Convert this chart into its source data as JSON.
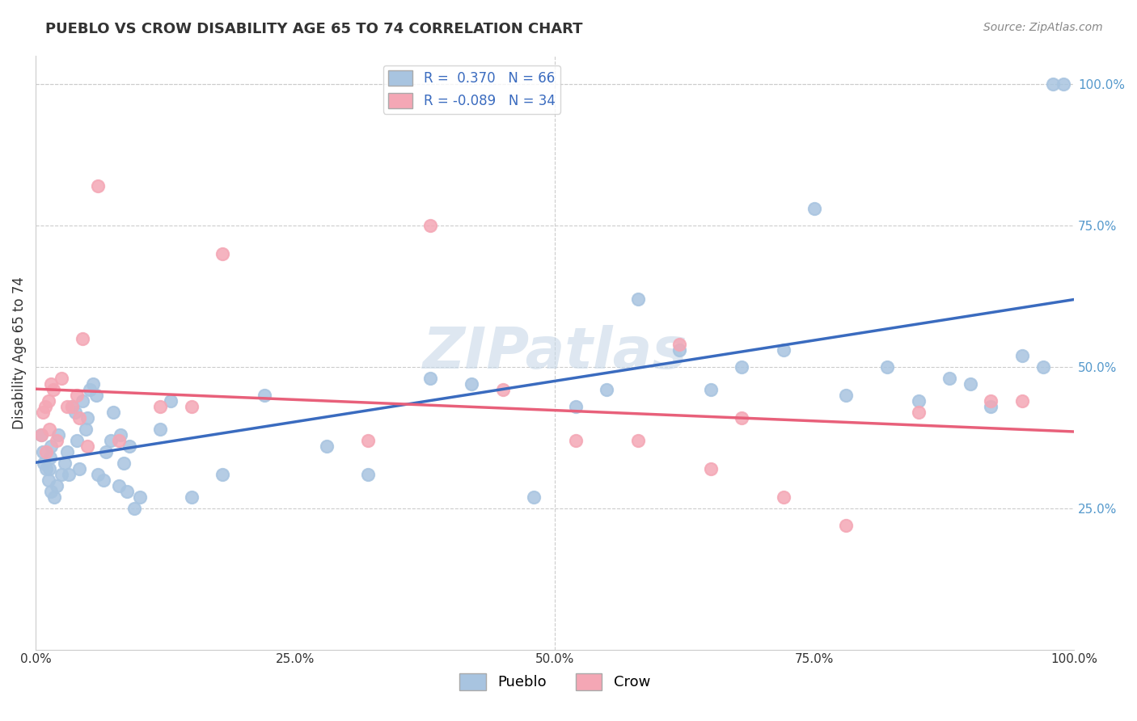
{
  "title": "PUEBLO VS CROW DISABILITY AGE 65 TO 74 CORRELATION CHART",
  "source": "Source: ZipAtlas.com",
  "ylabel_label": "Disability Age 65 to 74",
  "xmin": 0.0,
  "xmax": 1.0,
  "ymin": 0.0,
  "ymax": 1.05,
  "pueblo_r": 0.37,
  "pueblo_n": 66,
  "crow_r": -0.089,
  "crow_n": 34,
  "pueblo_color": "#a8c4e0",
  "crow_color": "#f4a7b5",
  "pueblo_line_color": "#3a6bbf",
  "crow_line_color": "#e8607a",
  "background_color": "#ffffff",
  "grid_color": "#cccccc",
  "title_color": "#333333",
  "right_axis_color": "#5599cc",
  "watermark": "ZIPatlas",
  "pueblo_x": [
    0.005,
    0.007,
    0.008,
    0.01,
    0.012,
    0.013,
    0.014,
    0.015,
    0.015,
    0.018,
    0.02,
    0.022,
    0.025,
    0.028,
    0.03,
    0.032,
    0.035,
    0.038,
    0.04,
    0.042,
    0.045,
    0.048,
    0.05,
    0.052,
    0.055,
    0.058,
    0.06,
    0.065,
    0.068,
    0.072,
    0.075,
    0.08,
    0.082,
    0.085,
    0.088,
    0.09,
    0.095,
    0.1,
    0.12,
    0.13,
    0.15,
    0.18,
    0.22,
    0.28,
    0.32,
    0.38,
    0.42,
    0.48,
    0.52,
    0.55,
    0.58,
    0.62,
    0.65,
    0.68,
    0.72,
    0.75,
    0.78,
    0.82,
    0.85,
    0.88,
    0.9,
    0.92,
    0.95,
    0.97,
    0.98,
    0.99
  ],
  "pueblo_y": [
    0.38,
    0.35,
    0.33,
    0.32,
    0.3,
    0.32,
    0.34,
    0.36,
    0.28,
    0.27,
    0.29,
    0.38,
    0.31,
    0.33,
    0.35,
    0.31,
    0.43,
    0.42,
    0.37,
    0.32,
    0.44,
    0.39,
    0.41,
    0.46,
    0.47,
    0.45,
    0.31,
    0.3,
    0.35,
    0.37,
    0.42,
    0.29,
    0.38,
    0.33,
    0.28,
    0.36,
    0.25,
    0.27,
    0.39,
    0.44,
    0.27,
    0.31,
    0.45,
    0.36,
    0.31,
    0.48,
    0.47,
    0.27,
    0.43,
    0.46,
    0.62,
    0.53,
    0.46,
    0.5,
    0.53,
    0.78,
    0.45,
    0.5,
    0.44,
    0.48,
    0.47,
    0.43,
    0.52,
    0.5,
    1.0,
    1.0
  ],
  "crow_x": [
    0.005,
    0.007,
    0.009,
    0.01,
    0.012,
    0.013,
    0.015,
    0.017,
    0.02,
    0.025,
    0.03,
    0.035,
    0.04,
    0.042,
    0.045,
    0.05,
    0.06,
    0.08,
    0.12,
    0.15,
    0.18,
    0.32,
    0.38,
    0.45,
    0.52,
    0.58,
    0.62,
    0.65,
    0.68,
    0.72,
    0.78,
    0.85,
    0.92,
    0.95
  ],
  "crow_y": [
    0.38,
    0.42,
    0.43,
    0.35,
    0.44,
    0.39,
    0.47,
    0.46,
    0.37,
    0.48,
    0.43,
    0.43,
    0.45,
    0.41,
    0.55,
    0.36,
    0.82,
    0.37,
    0.43,
    0.43,
    0.7,
    0.37,
    0.75,
    0.46,
    0.37,
    0.37,
    0.54,
    0.32,
    0.41,
    0.27,
    0.22,
    0.42,
    0.44,
    0.44
  ],
  "xtick_labels": [
    "0.0%",
    "25.0%",
    "50.0%",
    "75.0%",
    "100.0%"
  ],
  "xtick_positions": [
    0.0,
    0.25,
    0.5,
    0.75,
    1.0
  ],
  "ytick_positions_right": [
    0.25,
    0.5,
    0.75,
    1.0
  ],
  "ytick_labels_right": [
    "25.0%",
    "50.0%",
    "75.0%",
    "100.0%"
  ],
  "legend_pueblo_label": "Pueblo",
  "legend_crow_label": "Crow"
}
